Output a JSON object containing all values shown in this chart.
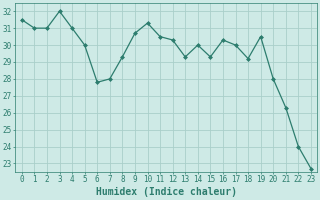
{
  "x": [
    0,
    1,
    2,
    3,
    4,
    5,
    6,
    7,
    8,
    9,
    10,
    11,
    12,
    13,
    14,
    15,
    16,
    17,
    18,
    19,
    20,
    21,
    22,
    23
  ],
  "y": [
    31.5,
    31.0,
    31.0,
    32.0,
    31.0,
    30.0,
    27.8,
    28.0,
    29.3,
    30.7,
    31.3,
    30.5,
    30.3,
    29.3,
    30.0,
    29.3,
    30.3,
    30.0,
    29.2,
    30.5,
    28.0,
    26.3,
    24.0,
    22.7
  ],
  "line_color": "#2d7d6e",
  "marker": "D",
  "marker_size": 2.0,
  "bg_color": "#ceeae6",
  "grid_color": "#aacfca",
  "xlabel": "Humidex (Indice chaleur)",
  "ylim_min": 22.5,
  "ylim_max": 32.5,
  "xlim_min": -0.5,
  "xlim_max": 23.5,
  "yticks": [
    23,
    24,
    25,
    26,
    27,
    28,
    29,
    30,
    31,
    32
  ],
  "xticks": [
    0,
    1,
    2,
    3,
    4,
    5,
    6,
    7,
    8,
    9,
    10,
    11,
    12,
    13,
    14,
    15,
    16,
    17,
    18,
    19,
    20,
    21,
    22,
    23
  ],
  "tick_color": "#2d7d6e",
  "label_fontsize": 5.5,
  "xlabel_fontsize": 7.0,
  "linewidth": 0.9
}
